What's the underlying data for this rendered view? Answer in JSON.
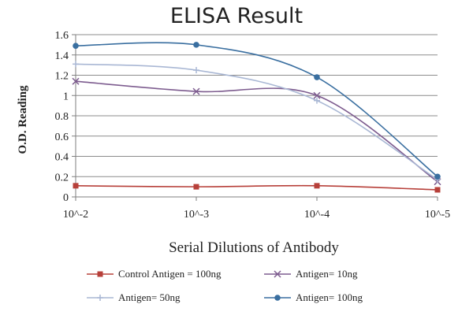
{
  "chart_data": {
    "type": "line",
    "title": "ELISA Result",
    "xlabel": "Serial Dilutions  of Antibody",
    "ylabel": "O.D. Reading",
    "categories": [
      "10^-2",
      "10^-3",
      "10^-4",
      "10^-5"
    ],
    "y_ticks": [
      "0",
      "0.2",
      "0.4",
      "0.6",
      "0.8",
      "1",
      "1.2",
      "1.4",
      "1.6"
    ],
    "ylim": [
      0,
      1.6
    ],
    "grid": true,
    "legend_position": "bottom",
    "series": [
      {
        "name": "Control Antigen = 100ng",
        "values": [
          0.11,
          0.1,
          0.11,
          0.07
        ],
        "color": "#b7403a",
        "marker": "square"
      },
      {
        "name": "Antigen= 10ng",
        "values": [
          1.14,
          1.04,
          1.0,
          0.15
        ],
        "color": "#7d5c8f",
        "marker": "x"
      },
      {
        "name": "Antigen= 50ng",
        "values": [
          1.31,
          1.25,
          0.95,
          0.17
        ],
        "color": "#a9b7d4",
        "marker": "plus"
      },
      {
        "name": "Antigen= 100ng",
        "values": [
          1.49,
          1.5,
          1.18,
          0.2
        ],
        "color": "#3a6fa0",
        "marker": "circle"
      }
    ]
  }
}
